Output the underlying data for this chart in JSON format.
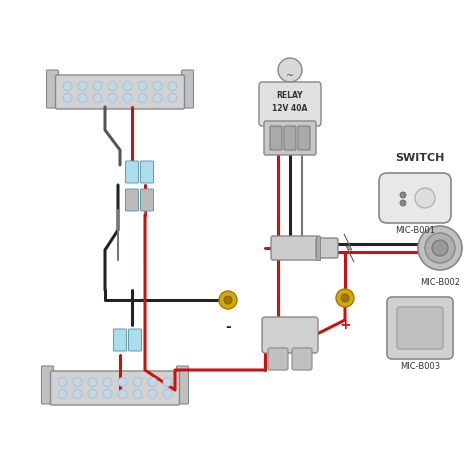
{
  "bg_color": "#ffffff",
  "wire_red": "#cc1111",
  "wire_black": "#222222",
  "wire_gray": "#777777",
  "comp_fill": "#d8d8d8",
  "comp_edge": "#888888",
  "relay_label": "RELAY\n12V 40A",
  "switch_label": "SWITCH",
  "mic_b001": "MIC-B001",
  "mic_b002": "MIC-B002",
  "mic_b003": "MIC-B003",
  "minus_label": "-",
  "plus_label": "+",
  "led_fill": "#c0d8e8",
  "yellow": "#d4aa00"
}
